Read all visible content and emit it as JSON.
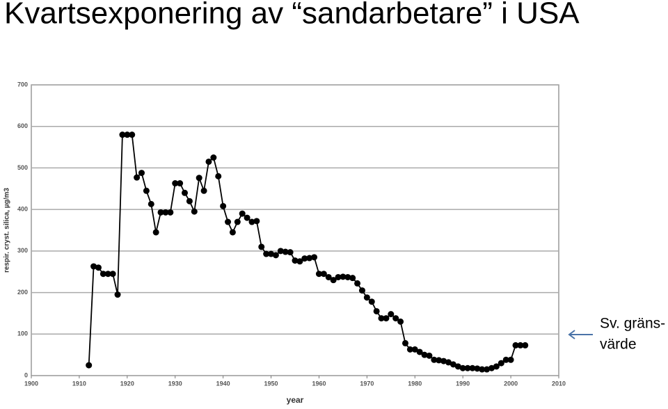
{
  "chart_data": {
    "type": "line",
    "title": "Kvartsexponering av “sandarbetare” i USA",
    "x_label": "year",
    "y_label": "respir. cryst. silica, µg/m3",
    "annotation": [
      "Sv. gräns-",
      "värde"
    ],
    "xlim": [
      1900,
      2010
    ],
    "xticks": [
      1900,
      1910,
      1920,
      1930,
      1940,
      1950,
      1960,
      1970,
      1980,
      1990,
      2000,
      2010
    ],
    "ylim": [
      0,
      700
    ],
    "yticks": [
      0,
      100,
      200,
      300,
      400,
      500,
      600,
      700
    ],
    "grid": true,
    "series": [
      {
        "color": "#000000",
        "x": [
          1912,
          1913,
          1914,
          1915,
          1916,
          1917,
          1918,
          1919,
          1920,
          1921,
          1922,
          1923,
          1924,
          1925,
          1926,
          1927,
          1928,
          1929,
          1930,
          1931,
          1932,
          1933,
          1934,
          1935,
          1936,
          1937,
          1938,
          1939,
          1940,
          1941,
          1942,
          1943,
          1944,
          1945,
          1946,
          1947,
          1948,
          1949,
          1950,
          1951,
          1952,
          1953,
          1954,
          1955,
          1956,
          1957,
          1958,
          1959,
          1960,
          1961,
          1962,
          1963,
          1964,
          1965,
          1966,
          1967,
          1968,
          1969,
          1970,
          1971,
          1972,
          1973,
          1974,
          1975,
          1976,
          1977,
          1978,
          1979,
          1980,
          1981,
          1982,
          1983,
          1984,
          1985,
          1986,
          1987,
          1988,
          1989,
          1990,
          1991,
          1992,
          1993,
          1994,
          1995,
          1996,
          1997,
          1998,
          1999,
          2000,
          2001,
          2002,
          2003
        ],
        "values": [
          25,
          263,
          260,
          245,
          245,
          245,
          195,
          580,
          580,
          580,
          477,
          488,
          445,
          413,
          345,
          393,
          393,
          393,
          463,
          463,
          440,
          420,
          395,
          476,
          445,
          515,
          525,
          480,
          408,
          370,
          345,
          370,
          390,
          380,
          370,
          372,
          310,
          293,
          293,
          290,
          300,
          298,
          297,
          277,
          275,
          282,
          283,
          285,
          245,
          245,
          237,
          230,
          237,
          238,
          237,
          235,
          222,
          205,
          188,
          178,
          155,
          138,
          138,
          148,
          138,
          130,
          78,
          63,
          63,
          57,
          50,
          48,
          38,
          37,
          35,
          32,
          27,
          22,
          18,
          18,
          18,
          17,
          15,
          15,
          18,
          22,
          30,
          38,
          38,
          73,
          73,
          73
        ]
      }
    ]
  }
}
